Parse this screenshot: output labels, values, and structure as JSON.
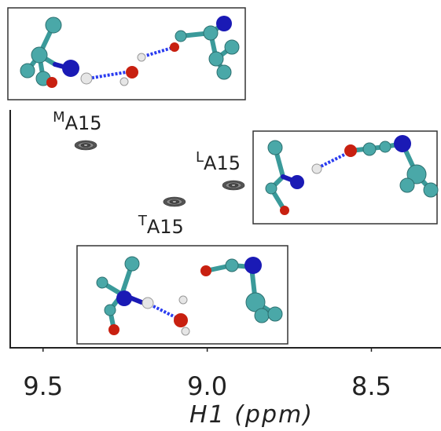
{
  "chart_data": {
    "type": "scatter",
    "x_label": "H1  (ppm)",
    "xlim": [
      9.6,
      8.3
    ],
    "xticks": [
      9.5,
      {
        "value": 9,
        "label": "9.0"
      },
      8.5
    ],
    "peaks": [
      {
        "label_sup": "M",
        "label": "A15",
        "x": 9.37
      },
      {
        "label_sup": "T",
        "label": "A15",
        "x": 9.1
      },
      {
        "label_sup": "L",
        "label": "A15",
        "x": 8.92
      }
    ]
  }
}
